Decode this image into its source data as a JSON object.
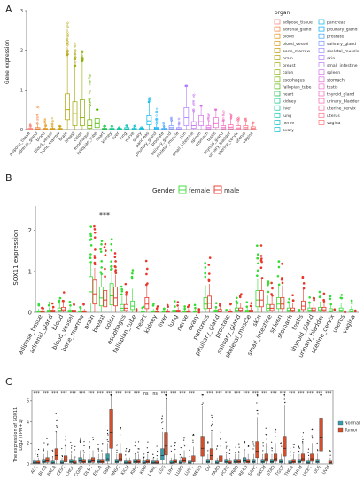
{
  "panels": {
    "a": "A",
    "b": "B",
    "c": "C"
  },
  "chart_data": [
    {
      "type": "box",
      "panel": "A",
      "ylabel": "Gene expression",
      "ylim": [
        0,
        3
      ],
      "yticks": [
        0,
        1,
        2,
        3
      ],
      "legend_title": "organ",
      "legend_position": "right",
      "tissues": [
        "adipose_tissue",
        "adrenal_gland",
        "blood",
        "blood_vessel",
        "bone_marrow",
        "brain",
        "breast",
        "colon",
        "esophagus",
        "fallopian_tube",
        "heart",
        "kidney",
        "liver",
        "lung",
        "nerve",
        "ovary",
        "pancreas",
        "pituitary_gland",
        "prostate",
        "salivary_gland",
        "skeletal_muscle",
        "skin",
        "small_intestine",
        "spleen",
        "stomach",
        "testis",
        "thyroid_gland",
        "urinary_bladder",
        "uterine_cervix",
        "uterus",
        "vagina"
      ],
      "colors": [
        "#f8766d",
        "#f17c2e",
        "#e38900",
        "#d39200",
        "#c49a00",
        "#b2a100",
        "#9fa600",
        "#87ac00",
        "#6eb200",
        "#4eb600",
        "#00ba38",
        "#00bf7d",
        "#00c19a",
        "#00c1b2",
        "#00bfc4",
        "#00bbd6",
        "#00b5e8",
        "#00acfc",
        "#35a2ff",
        "#7996ff",
        "#9a8bff",
        "#b07fff",
        "#c274f5",
        "#d36ded",
        "#e06ae0",
        "#ea6ad1",
        "#f365bf",
        "#fa62ad",
        "#fd6598",
        "#ff6b85",
        "#fb6f75"
      ],
      "medians": [
        0.01,
        0.02,
        0.01,
        0.01,
        0.01,
        0.5,
        0.4,
        0.3,
        0.1,
        0.15,
        0.01,
        0.01,
        0.01,
        0.02,
        0.01,
        0.01,
        0.22,
        0.03,
        0.01,
        0.05,
        0.02,
        0.3,
        0.1,
        0.2,
        0.05,
        0.15,
        0.05,
        0.06,
        0.04,
        0.05,
        0.03
      ],
      "q1": [
        0,
        0,
        0,
        0,
        0,
        0.25,
        0.1,
        0.1,
        0.03,
        0.05,
        0,
        0,
        0,
        0,
        0,
        0,
        0.12,
        0.01,
        0,
        0.02,
        0,
        0.1,
        0.03,
        0.1,
        0.02,
        0.05,
        0.02,
        0.02,
        0.01,
        0.02,
        0.01
      ],
      "q3": [
        0.03,
        0.05,
        0.03,
        0.03,
        0.03,
        0.9,
        0.7,
        0.75,
        0.25,
        0.28,
        0.03,
        0.03,
        0.03,
        0.05,
        0.03,
        0.03,
        0.35,
        0.06,
        0.03,
        0.1,
        0.05,
        0.55,
        0.2,
        0.35,
        0.1,
        0.3,
        0.1,
        0.12,
        0.1,
        0.1,
        0.07
      ],
      "max_outlier": [
        0.2,
        0.6,
        0.5,
        0.3,
        0.1,
        2.8,
        2.2,
        2.0,
        1.5,
        0.5,
        0.1,
        0.1,
        0.05,
        0.1,
        0.1,
        0.05,
        0.9,
        0.6,
        0.2,
        0.3,
        0.3,
        1.1,
        0.9,
        0.6,
        0.4,
        0.5,
        0.5,
        0.4,
        0.3,
        0.3,
        0.2
      ]
    },
    {
      "type": "box",
      "panel": "B",
      "ylabel": "SOX11 expression",
      "ylim": [
        0,
        2.6
      ],
      "yticks": [
        0,
        1,
        2
      ],
      "legend_title": "Gender",
      "legend_position": "top",
      "series": [
        {
          "name": "female",
          "color": "#33dd33"
        },
        {
          "name": "male",
          "color": "#e8372b"
        }
      ],
      "annotation": "***",
      "tissues": [
        "adipose_tissue",
        "adrenal_gland",
        "blood",
        "blood_vessel",
        "bone_marrow",
        "brain",
        "breast",
        "colon",
        "esophagus",
        "fallopian_tube",
        "heart",
        "kidney",
        "liver",
        "lung",
        "nerve",
        "ovary",
        "pancreas",
        "pituitary_gland",
        "prostate",
        "salivary_gland",
        "skeletal_muscle",
        "skin",
        "small_intestine",
        "spleen",
        "stomach",
        "testis",
        "thyroid_gland",
        "urinary_bladder",
        "uterine_cervix",
        "uterus",
        "vagina"
      ],
      "female_medians": [
        0.01,
        0.02,
        0.05,
        0.02,
        0.01,
        0.5,
        0.35,
        0.4,
        0.1,
        0.15,
        0.01,
        0.01,
        0.01,
        0.02,
        0.01,
        0.01,
        0.2,
        0.02,
        null,
        0.05,
        0.02,
        0.3,
        0.1,
        0.2,
        0.05,
        null,
        0.05,
        0.06,
        0.04,
        0.05,
        0.03
      ],
      "male_medians": [
        0.01,
        0.02,
        0.06,
        0.02,
        0.01,
        0.45,
        0.3,
        0.35,
        0.1,
        null,
        0.2,
        0.01,
        0.01,
        0.02,
        0.01,
        null,
        0.22,
        0.03,
        0.01,
        0.05,
        0.02,
        0.3,
        0.1,
        0.2,
        0.05,
        0.15,
        0.05,
        0.06,
        null,
        null,
        null
      ]
    },
    {
      "type": "box",
      "panel": "C",
      "ylabel": "The expression of SOX11\nLog2 (TPM+1)",
      "ylim": [
        0,
        7
      ],
      "yticks": [
        0,
        2,
        4,
        6
      ],
      "legend_position": "right",
      "series": [
        {
          "name": "Normal",
          "color": "#3a9ba8"
        },
        {
          "name": "Tumor",
          "color": "#d34e2a"
        }
      ],
      "cancers": [
        "ACC",
        "BLCA",
        "BRCA",
        "CESC",
        "CHOL",
        "COAD",
        "DLBC",
        "ESCA",
        "GBM",
        "HNSC",
        "KICH",
        "KIRC",
        "KIRP",
        "LAML",
        "LGG",
        "LIHC",
        "LUAD",
        "LUSC",
        "MESO",
        "OV",
        "PAAD",
        "PCPG",
        "PRAD",
        "READ",
        "SARC",
        "SKCM",
        "STAD",
        "TGCT",
        "THCA",
        "THYM",
        "UCEC",
        "UCS",
        "UVM"
      ],
      "significance": [
        "***",
        "***",
        "***",
        "***",
        "***",
        "***",
        "***",
        "***",
        "***",
        "***",
        "***",
        "***",
        "ns",
        "ns",
        "***",
        "***",
        "***",
        "***",
        "",
        "***",
        "***",
        "***",
        "***",
        "***",
        "***",
        "***",
        "***",
        "***",
        "***",
        "***",
        "***",
        "***",
        "***"
      ],
      "normal_medians": [
        0.1,
        0.2,
        0.1,
        0.1,
        0.2,
        0.3,
        0.2,
        0.2,
        0.5,
        0.2,
        0.1,
        0.2,
        0.1,
        0.1,
        0.8,
        0.1,
        0.1,
        0.1,
        null,
        0.2,
        0.1,
        0.2,
        0.2,
        0.3,
        0.2,
        0.2,
        0.2,
        0.2,
        0.1,
        0.2,
        0.1,
        0.2,
        null
      ],
      "tumor_medians": [
        0.1,
        0.3,
        0.8,
        0.4,
        0.1,
        0.2,
        0.3,
        0.2,
        3.0,
        0.5,
        0.1,
        0.2,
        0.2,
        0.1,
        1.7,
        0.2,
        0.3,
        0.4,
        1.5,
        0.8,
        0.4,
        0.1,
        0.2,
        0.2,
        1.2,
        0.5,
        0.5,
        1.5,
        0.2,
        0.5,
        0.5,
        2.5,
        0.1
      ]
    }
  ]
}
